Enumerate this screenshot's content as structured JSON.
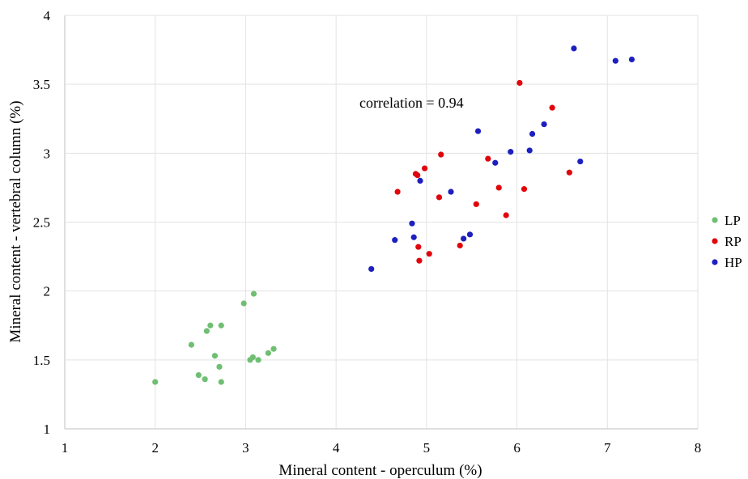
{
  "chart_data": {
    "type": "scatter",
    "title": "",
    "xlabel": "Mineral content - operculum (%)",
    "ylabel": "Mineral content - vertebral column (%)",
    "xlim": [
      1,
      8
    ],
    "ylim": [
      1,
      4
    ],
    "x_ticks": [
      "1",
      "2",
      "3",
      "4",
      "5",
      "6",
      "7",
      "8"
    ],
    "y_ticks": [
      "1",
      "1.5",
      "2",
      "2.5",
      "3",
      "3.5",
      "4"
    ],
    "grid": true,
    "legend_position": "right",
    "annotation": "correlation = 0.94",
    "series": [
      {
        "name": "LP",
        "color": "#6fbf73",
        "points": [
          [
            2.0,
            1.34
          ],
          [
            2.4,
            1.61
          ],
          [
            2.48,
            1.39
          ],
          [
            2.55,
            1.36
          ],
          [
            2.57,
            1.71
          ],
          [
            2.61,
            1.75
          ],
          [
            2.66,
            1.53
          ],
          [
            2.71,
            1.45
          ],
          [
            2.73,
            1.75
          ],
          [
            2.73,
            1.34
          ],
          [
            2.98,
            1.91
          ],
          [
            3.05,
            1.5
          ],
          [
            3.08,
            1.52
          ],
          [
            3.09,
            1.98
          ],
          [
            3.14,
            1.5
          ],
          [
            3.25,
            1.55
          ],
          [
            3.31,
            1.58
          ]
        ]
      },
      {
        "name": "RP",
        "color": "#e0060c",
        "points": [
          [
            4.68,
            2.72
          ],
          [
            4.88,
            2.85
          ],
          [
            4.9,
            2.84
          ],
          [
            4.91,
            2.32
          ],
          [
            4.92,
            2.22
          ],
          [
            4.98,
            2.89
          ],
          [
            5.03,
            2.27
          ],
          [
            5.14,
            2.68
          ],
          [
            5.16,
            2.99
          ],
          [
            5.37,
            2.33
          ],
          [
            5.55,
            2.63
          ],
          [
            5.68,
            2.96
          ],
          [
            5.8,
            2.75
          ],
          [
            5.88,
            2.55
          ],
          [
            6.03,
            3.51
          ],
          [
            6.08,
            2.74
          ],
          [
            6.39,
            3.33
          ],
          [
            6.58,
            2.86
          ]
        ]
      },
      {
        "name": "HP",
        "color": "#1d1fbf",
        "points": [
          [
            4.39,
            2.16
          ],
          [
            4.65,
            2.37
          ],
          [
            4.84,
            2.49
          ],
          [
            4.86,
            2.39
          ],
          [
            4.93,
            2.8
          ],
          [
            5.27,
            2.72
          ],
          [
            5.41,
            2.38
          ],
          [
            5.48,
            2.41
          ],
          [
            5.57,
            3.16
          ],
          [
            5.76,
            2.93
          ],
          [
            5.93,
            3.01
          ],
          [
            6.14,
            3.02
          ],
          [
            6.17,
            3.14
          ],
          [
            6.3,
            3.21
          ],
          [
            6.63,
            3.76
          ],
          [
            6.7,
            2.94
          ],
          [
            7.09,
            3.67
          ],
          [
            7.27,
            3.68
          ]
        ]
      }
    ]
  }
}
